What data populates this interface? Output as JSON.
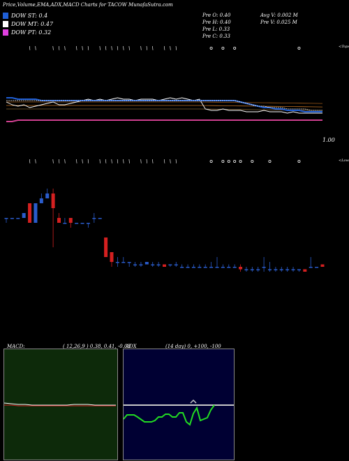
{
  "header": {
    "title": "Price,Volume,EMA,ADX,MACD Charts for TACOW MunafaSutra.com"
  },
  "legend": [
    {
      "label": "DOW ST: 0.4",
      "color": "#1f5fd6"
    },
    {
      "label": "DOW MT: 0.47",
      "color": "#ffffff"
    },
    {
      "label": "DOW PT: 0.32",
      "color": "#e040e0"
    }
  ],
  "prev": {
    "o": "Pre   O: 0.40",
    "h": "Pre   H: 0.40",
    "l": "Pre   L: 0.33",
    "c": "Pre   C: 0.33"
  },
  "stats": {
    "avg_vol": "Avg V: 0.002  M",
    "prev_vol": "Pre   V: 0.025 M"
  },
  "labels": {
    "tops": "<Tops",
    "lows": "<Lows",
    "price_level": "1.00"
  },
  "macd_panel": {
    "label": "MACD:",
    "params": "( 12,26,9 ) 0.38,  0.41,  -0.03",
    "bg": "#0d2a0a"
  },
  "adx_panel": {
    "label": "ADX",
    "params": "(14  day) 0,  +100,  -100",
    "bg": "#000033"
  },
  "colors": {
    "bull": "#2a5ccc",
    "bear": "#d42020",
    "bg": "#000000"
  },
  "chart_data": {
    "type": "candlestick",
    "ohlc": [
      {
        "o": 0.34,
        "h": 0.34,
        "l": 0.33,
        "c": 0.34
      },
      {
        "o": 0.34,
        "h": 0.34,
        "l": 0.34,
        "c": 0.34
      },
      {
        "o": 0.34,
        "h": 0.34,
        "l": 0.34,
        "c": 0.34
      },
      {
        "o": 0.34,
        "h": 0.35,
        "l": 0.34,
        "c": 0.35
      },
      {
        "o": 0.37,
        "h": 0.37,
        "l": 0.33,
        "c": 0.33
      },
      {
        "o": 0.33,
        "h": 0.37,
        "l": 0.33,
        "c": 0.37
      },
      {
        "o": 0.37,
        "h": 0.39,
        "l": 0.37,
        "c": 0.38
      },
      {
        "o": 0.38,
        "h": 0.4,
        "l": 0.38,
        "c": 0.39
      },
      {
        "o": 0.39,
        "h": 0.4,
        "l": 0.28,
        "c": 0.36
      },
      {
        "o": 0.34,
        "h": 0.35,
        "l": 0.33,
        "c": 0.33
      },
      {
        "o": 0.33,
        "h": 0.34,
        "l": 0.33,
        "c": 0.33
      },
      {
        "o": 0.34,
        "h": 0.34,
        "l": 0.32,
        "c": 0.33
      },
      {
        "o": 0.33,
        "h": 0.33,
        "l": 0.33,
        "c": 0.33
      },
      {
        "o": 0.33,
        "h": 0.33,
        "l": 0.33,
        "c": 0.33
      },
      {
        "o": 0.33,
        "h": 0.33,
        "l": 0.32,
        "c": 0.33
      },
      {
        "o": 0.34,
        "h": 0.35,
        "l": 0.33,
        "c": 0.34
      },
      {
        "o": 0.34,
        "h": 0.34,
        "l": 0.34,
        "c": 0.34
      },
      {
        "o": 0.3,
        "h": 0.3,
        "l": 0.26,
        "c": 0.26
      },
      {
        "o": 0.27,
        "h": 0.27,
        "l": 0.24,
        "c": 0.25
      },
      {
        "o": 0.25,
        "h": 0.26,
        "l": 0.24,
        "c": 0.25
      },
      {
        "o": 0.25,
        "h": 0.26,
        "l": 0.25,
        "c": 0.25
      },
      {
        "o": 0.25,
        "h": 0.25,
        "l": 0.24,
        "c": 0.25
      },
      {
        "o": 0.245,
        "h": 0.25,
        "l": 0.24,
        "c": 0.245
      },
      {
        "o": 0.245,
        "h": 0.25,
        "l": 0.24,
        "c": 0.245
      },
      {
        "o": 0.245,
        "h": 0.25,
        "l": 0.245,
        "c": 0.25
      },
      {
        "o": 0.245,
        "h": 0.25,
        "l": 0.24,
        "c": 0.245
      },
      {
        "o": 0.245,
        "h": 0.25,
        "l": 0.24,
        "c": 0.245
      },
      {
        "o": 0.245,
        "h": 0.245,
        "l": 0.24,
        "c": 0.24
      },
      {
        "o": 0.245,
        "h": 0.245,
        "l": 0.24,
        "c": 0.245
      },
      {
        "o": 0.245,
        "h": 0.25,
        "l": 0.24,
        "c": 0.245
      },
      {
        "o": 0.24,
        "h": 0.245,
        "l": 0.24,
        "c": 0.24
      },
      {
        "o": 0.24,
        "h": 0.245,
        "l": 0.24,
        "c": 0.24
      },
      {
        "o": 0.24,
        "h": 0.245,
        "l": 0.24,
        "c": 0.24
      },
      {
        "o": 0.24,
        "h": 0.245,
        "l": 0.24,
        "c": 0.24
      },
      {
        "o": 0.24,
        "h": 0.245,
        "l": 0.24,
        "c": 0.24
      },
      {
        "o": 0.24,
        "h": 0.25,
        "l": 0.24,
        "c": 0.24
      },
      {
        "o": 0.24,
        "h": 0.26,
        "l": 0.24,
        "c": 0.24
      },
      {
        "o": 0.24,
        "h": 0.245,
        "l": 0.24,
        "c": 0.24
      },
      {
        "o": 0.24,
        "h": 0.245,
        "l": 0.24,
        "c": 0.24
      },
      {
        "o": 0.24,
        "h": 0.245,
        "l": 0.24,
        "c": 0.24
      },
      {
        "o": 0.24,
        "h": 0.245,
        "l": 0.23,
        "c": 0.235
      },
      {
        "o": 0.235,
        "h": 0.24,
        "l": 0.23,
        "c": 0.235
      },
      {
        "o": 0.235,
        "h": 0.24,
        "l": 0.23,
        "c": 0.235
      },
      {
        "o": 0.235,
        "h": 0.24,
        "l": 0.23,
        "c": 0.235
      },
      {
        "o": 0.24,
        "h": 0.26,
        "l": 0.23,
        "c": 0.24
      },
      {
        "o": 0.235,
        "h": 0.25,
        "l": 0.23,
        "c": 0.235
      },
      {
        "o": 0.235,
        "h": 0.24,
        "l": 0.23,
        "c": 0.235
      },
      {
        "o": 0.235,
        "h": 0.24,
        "l": 0.23,
        "c": 0.235
      },
      {
        "o": 0.235,
        "h": 0.24,
        "l": 0.23,
        "c": 0.235
      },
      {
        "o": 0.235,
        "h": 0.24,
        "l": 0.23,
        "c": 0.235
      },
      {
        "o": 0.235,
        "h": 0.235,
        "l": 0.23,
        "c": 0.235
      },
      {
        "o": 0.235,
        "h": 0.235,
        "l": 0.23,
        "c": 0.23
      },
      {
        "o": 0.24,
        "h": 0.26,
        "l": 0.24,
        "c": 0.24
      },
      {
        "o": 0.24,
        "h": 0.24,
        "l": 0.24,
        "c": 0.24
      },
      {
        "o": 0.245,
        "h": 0.245,
        "l": 0.24,
        "c": 0.24
      }
    ],
    "ema_lines": [
      {
        "name": "short",
        "color": "#1f5fd6",
        "values": [
          0.85,
          0.85,
          0.84,
          0.84,
          0.84,
          0.84,
          0.83,
          0.83,
          0.83,
          0.83,
          0.83,
          0.83,
          0.83,
          0.83,
          0.83,
          0.83,
          0.83,
          0.83,
          0.83,
          0.83,
          0.83,
          0.83,
          0.83,
          0.83,
          0.83,
          0.83,
          0.83,
          0.83,
          0.83,
          0.83,
          0.83,
          0.83,
          0.83,
          0.83,
          0.83,
          0.83,
          0.83,
          0.83,
          0.83,
          0.83,
          0.82,
          0.81,
          0.8,
          0.79,
          0.78,
          0.78,
          0.77,
          0.77,
          0.76,
          0.76,
          0.76,
          0.75,
          0.75,
          0.75,
          0.75
        ]
      },
      {
        "name": "mid",
        "color": "#ffffff",
        "values": [
          0.83,
          0.83,
          0.83,
          0.83,
          0.83,
          0.83,
          0.83,
          0.83,
          0.83,
          0.83,
          0.83,
          0.83,
          0.83,
          0.83,
          0.83,
          0.83,
          0.83,
          0.83,
          0.83,
          0.83,
          0.83,
          0.83,
          0.83,
          0.83,
          0.83,
          0.83,
          0.83,
          0.83,
          0.83,
          0.83,
          0.83,
          0.83,
          0.83,
          0.83,
          0.83,
          0.83,
          0.83,
          0.83,
          0.83,
          0.83,
          0.82,
          0.81,
          0.8,
          0.79,
          0.79,
          0.78,
          0.78,
          0.78,
          0.77,
          0.77,
          0.77,
          0.77,
          0.76,
          0.76,
          0.76
        ]
      },
      {
        "name": "long",
        "color": "#d04090",
        "values": [
          0.68,
          0.68,
          0.69,
          0.69,
          0.69,
          0.69,
          0.69,
          0.69,
          0.69,
          0.69,
          0.69,
          0.69,
          0.69,
          0.69,
          0.69,
          0.69,
          0.69,
          0.69,
          0.69,
          0.69,
          0.69,
          0.69,
          0.69,
          0.69,
          0.69,
          0.69,
          0.69,
          0.69,
          0.69,
          0.69,
          0.69,
          0.69,
          0.69,
          0.69,
          0.69,
          0.69,
          0.69,
          0.69,
          0.69,
          0.69,
          0.69,
          0.69,
          0.69,
          0.69,
          0.69,
          0.69,
          0.69,
          0.69,
          0.69,
          0.69,
          0.69,
          0.69,
          0.69,
          0.69,
          0.69
        ]
      }
    ]
  }
}
